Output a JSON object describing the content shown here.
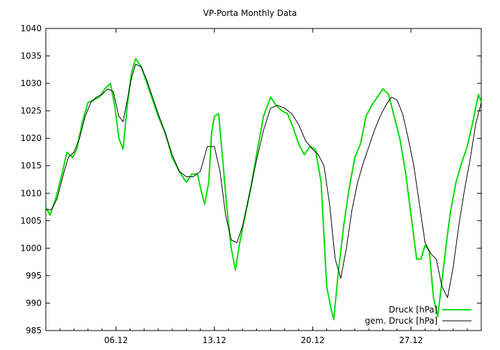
{
  "chart_data": {
    "type": "line",
    "title": "VP-Porta Monthly Data",
    "xlabel": "",
    "ylabel": "",
    "ylim": [
      985,
      1040
    ],
    "yticks": [
      985,
      990,
      995,
      1000,
      1005,
      1010,
      1015,
      1020,
      1025,
      1030,
      1035,
      1040
    ],
    "xlim": [
      0,
      31
    ],
    "x_tick_labels": [
      {
        "x": 5,
        "label": "06.12"
      },
      {
        "x": 12,
        "label": "13.12"
      },
      {
        "x": 19,
        "label": "20.12"
      },
      {
        "x": 26,
        "label": "27.12"
      }
    ],
    "grid": false,
    "legend_position": "bottom-right",
    "series": [
      {
        "name": "Druck [hPa]",
        "color": "#00dd00",
        "x": [
          0,
          0.3,
          0.7,
          1.2,
          1.5,
          1.9,
          2.2,
          2.6,
          3.0,
          3.4,
          3.8,
          4.2,
          4.6,
          4.9,
          5.2,
          5.5,
          5.8,
          6.1,
          6.4,
          6.8,
          7.2,
          7.6,
          8.0,
          8.5,
          9.0,
          9.5,
          10.0,
          10.4,
          10.8,
          11.1,
          11.3,
          11.6,
          11.8,
          12.0,
          12.3,
          12.6,
          12.9,
          13.2,
          13.5,
          13.8,
          14.2,
          14.6,
          15.0,
          15.5,
          16.0,
          16.4,
          16.8,
          17.2,
          17.6,
          18.0,
          18.4,
          18.8,
          19.2,
          19.6,
          20.0,
          20.3,
          20.5,
          20.8,
          21.2,
          21.6,
          22.0,
          22.4,
          22.8,
          23.2,
          23.6,
          24.0,
          24.4,
          24.8,
          25.2,
          25.6,
          26.0,
          26.4,
          26.7,
          27.0,
          27.3,
          27.6,
          27.9,
          28.2,
          28.5,
          28.8,
          29.2,
          29.6,
          30.0,
          30.4,
          30.8,
          31.0
        ],
        "values": [
          1007.5,
          1006.0,
          1009.0,
          1014.0,
          1017.5,
          1016.5,
          1018.0,
          1023.0,
          1026.5,
          1027.0,
          1027.5,
          1029.0,
          1030.0,
          1026.0,
          1020.0,
          1018.0,
          1026.0,
          1032.0,
          1034.5,
          1033.0,
          1030.0,
          1027.0,
          1024.0,
          1021.0,
          1016.5,
          1014.0,
          1012.0,
          1013.5,
          1013.5,
          1010.0,
          1008.0,
          1012.0,
          1021.0,
          1024.0,
          1024.5,
          1016.0,
          1007.0,
          1000.0,
          996.0,
          1001.0,
          1006.0,
          1011.0,
          1017.0,
          1024.0,
          1027.5,
          1026.0,
          1025.0,
          1024.5,
          1022.0,
          1019.0,
          1017.0,
          1018.5,
          1018.0,
          1012.0,
          993.0,
          989.0,
          987.0,
          995.0,
          1004.0,
          1011.0,
          1016.5,
          1019.0,
          1024.0,
          1026.0,
          1027.5,
          1029.0,
          1028.0,
          1024.0,
          1020.0,
          1014.0,
          1006.0,
          998.0,
          998.0,
          1000.5,
          999.5,
          991.0,
          987.5,
          994.0,
          1000.5,
          1006.5,
          1012.0,
          1015.5,
          1018.5,
          1023.0,
          1028.0,
          1026.5
        ]
      },
      {
        "name": "gem. Druck [hPa]",
        "color": "#000000",
        "x": [
          0,
          0.4,
          0.8,
          1.2,
          1.6,
          2.0,
          2.4,
          2.8,
          3.2,
          3.6,
          4.0,
          4.4,
          4.8,
          5.2,
          5.5,
          5.8,
          6.1,
          6.4,
          6.8,
          7.2,
          7.6,
          8.0,
          8.5,
          9.0,
          9.5,
          10.0,
          10.5,
          11.0,
          11.5,
          12.0,
          12.4,
          12.8,
          13.2,
          13.6,
          14.0,
          14.5,
          15.0,
          15.5,
          16.0,
          16.5,
          17.0,
          17.5,
          18.0,
          18.5,
          19.0,
          19.4,
          19.8,
          20.2,
          20.6,
          21.0,
          21.4,
          21.8,
          22.2,
          22.6,
          23.0,
          23.4,
          23.8,
          24.2,
          24.6,
          25.0,
          25.4,
          25.8,
          26.2,
          26.6,
          27.0,
          27.4,
          27.8,
          28.2,
          28.6,
          29.0,
          29.4,
          29.8,
          30.2,
          30.6,
          31.0
        ],
        "values": [
          1007.0,
          1007.0,
          1009.0,
          1013.0,
          1016.5,
          1017.5,
          1020.0,
          1024.0,
          1026.5,
          1027.5,
          1028.0,
          1029.0,
          1028.5,
          1024.0,
          1023.0,
          1027.0,
          1031.0,
          1033.5,
          1033.0,
          1030.5,
          1027.5,
          1024.5,
          1021.0,
          1017.0,
          1014.0,
          1013.0,
          1013.0,
          1014.0,
          1018.5,
          1018.5,
          1014.0,
          1006.0,
          1001.5,
          1001.0,
          1004.0,
          1010.0,
          1016.0,
          1021.5,
          1025.5,
          1026.0,
          1025.5,
          1024.5,
          1022.5,
          1019.5,
          1018.0,
          1017.0,
          1015.0,
          1008.0,
          998.0,
          994.5,
          1000.0,
          1007.0,
          1012.0,
          1015.5,
          1018.5,
          1021.5,
          1024.0,
          1026.0,
          1027.5,
          1027.0,
          1024.5,
          1020.0,
          1015.0,
          1008.0,
          1001.0,
          999.0,
          998.0,
          993.0,
          991.0,
          996.5,
          1004.0,
          1010.5,
          1016.0,
          1022.5,
          1026.5
        ]
      }
    ]
  }
}
